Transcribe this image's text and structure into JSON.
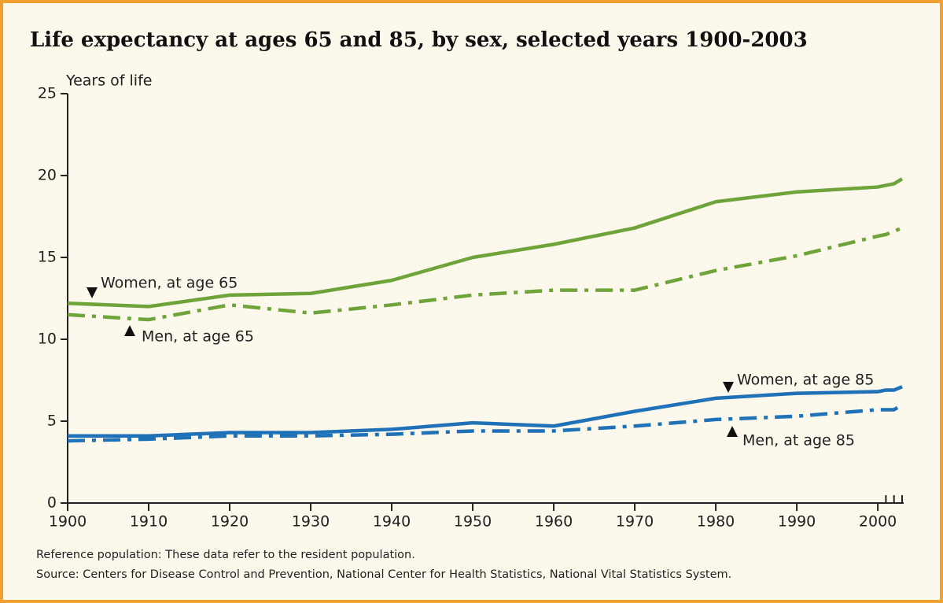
{
  "chart_data": {
    "type": "line",
    "title": "Life expectancy at ages 65 and 85, by sex, selected years 1900-2003",
    "y_label": "Years of life",
    "x": [
      1900,
      1910,
      1920,
      1930,
      1940,
      1950,
      1960,
      1970,
      1980,
      1990,
      2000,
      2001,
      2002,
      2003
    ],
    "series": [
      {
        "name": "Women, at age 65",
        "color": "#6ea43a",
        "style": "solid",
        "values": [
          12.2,
          12.0,
          12.7,
          12.8,
          13.6,
          15.0,
          15.8,
          16.8,
          18.4,
          19.0,
          19.3,
          19.4,
          19.5,
          19.8
        ]
      },
      {
        "name": "Men, at age 65",
        "color": "#6ea43a",
        "style": "dashdot",
        "values": [
          11.5,
          11.2,
          12.1,
          11.6,
          12.1,
          12.7,
          13.0,
          13.0,
          14.2,
          15.1,
          16.3,
          16.4,
          16.6,
          16.8
        ]
      },
      {
        "name": "Women, at age 85",
        "color": "#1f72b8",
        "style": "solid",
        "values": [
          4.1,
          4.1,
          4.3,
          4.3,
          4.5,
          4.9,
          4.7,
          5.6,
          6.4,
          6.7,
          6.8,
          6.9,
          6.9,
          7.1
        ]
      },
      {
        "name": "Men, at age 85",
        "color": "#1f72b8",
        "style": "dashdot",
        "values": [
          3.8,
          3.9,
          4.1,
          4.1,
          4.2,
          4.4,
          4.4,
          4.7,
          5.1,
          5.3,
          5.7,
          5.7,
          5.7,
          6.0
        ]
      }
    ],
    "xlim": [
      1900,
      2003
    ],
    "xticks": [
      1900,
      1910,
      1920,
      1930,
      1940,
      1950,
      1960,
      1970,
      1980,
      1990,
      2000
    ],
    "minor_xticks": [
      2001,
      2002,
      2003
    ],
    "ylim": [
      0,
      25
    ],
    "yticks": [
      0,
      5,
      10,
      15,
      20,
      25
    ],
    "notes": [
      "Reference population: These data refer to the resident population.",
      "Source:  Centers for Disease Control and Prevention, National Center for Health Statistics, National Vital Statistics System."
    ]
  }
}
